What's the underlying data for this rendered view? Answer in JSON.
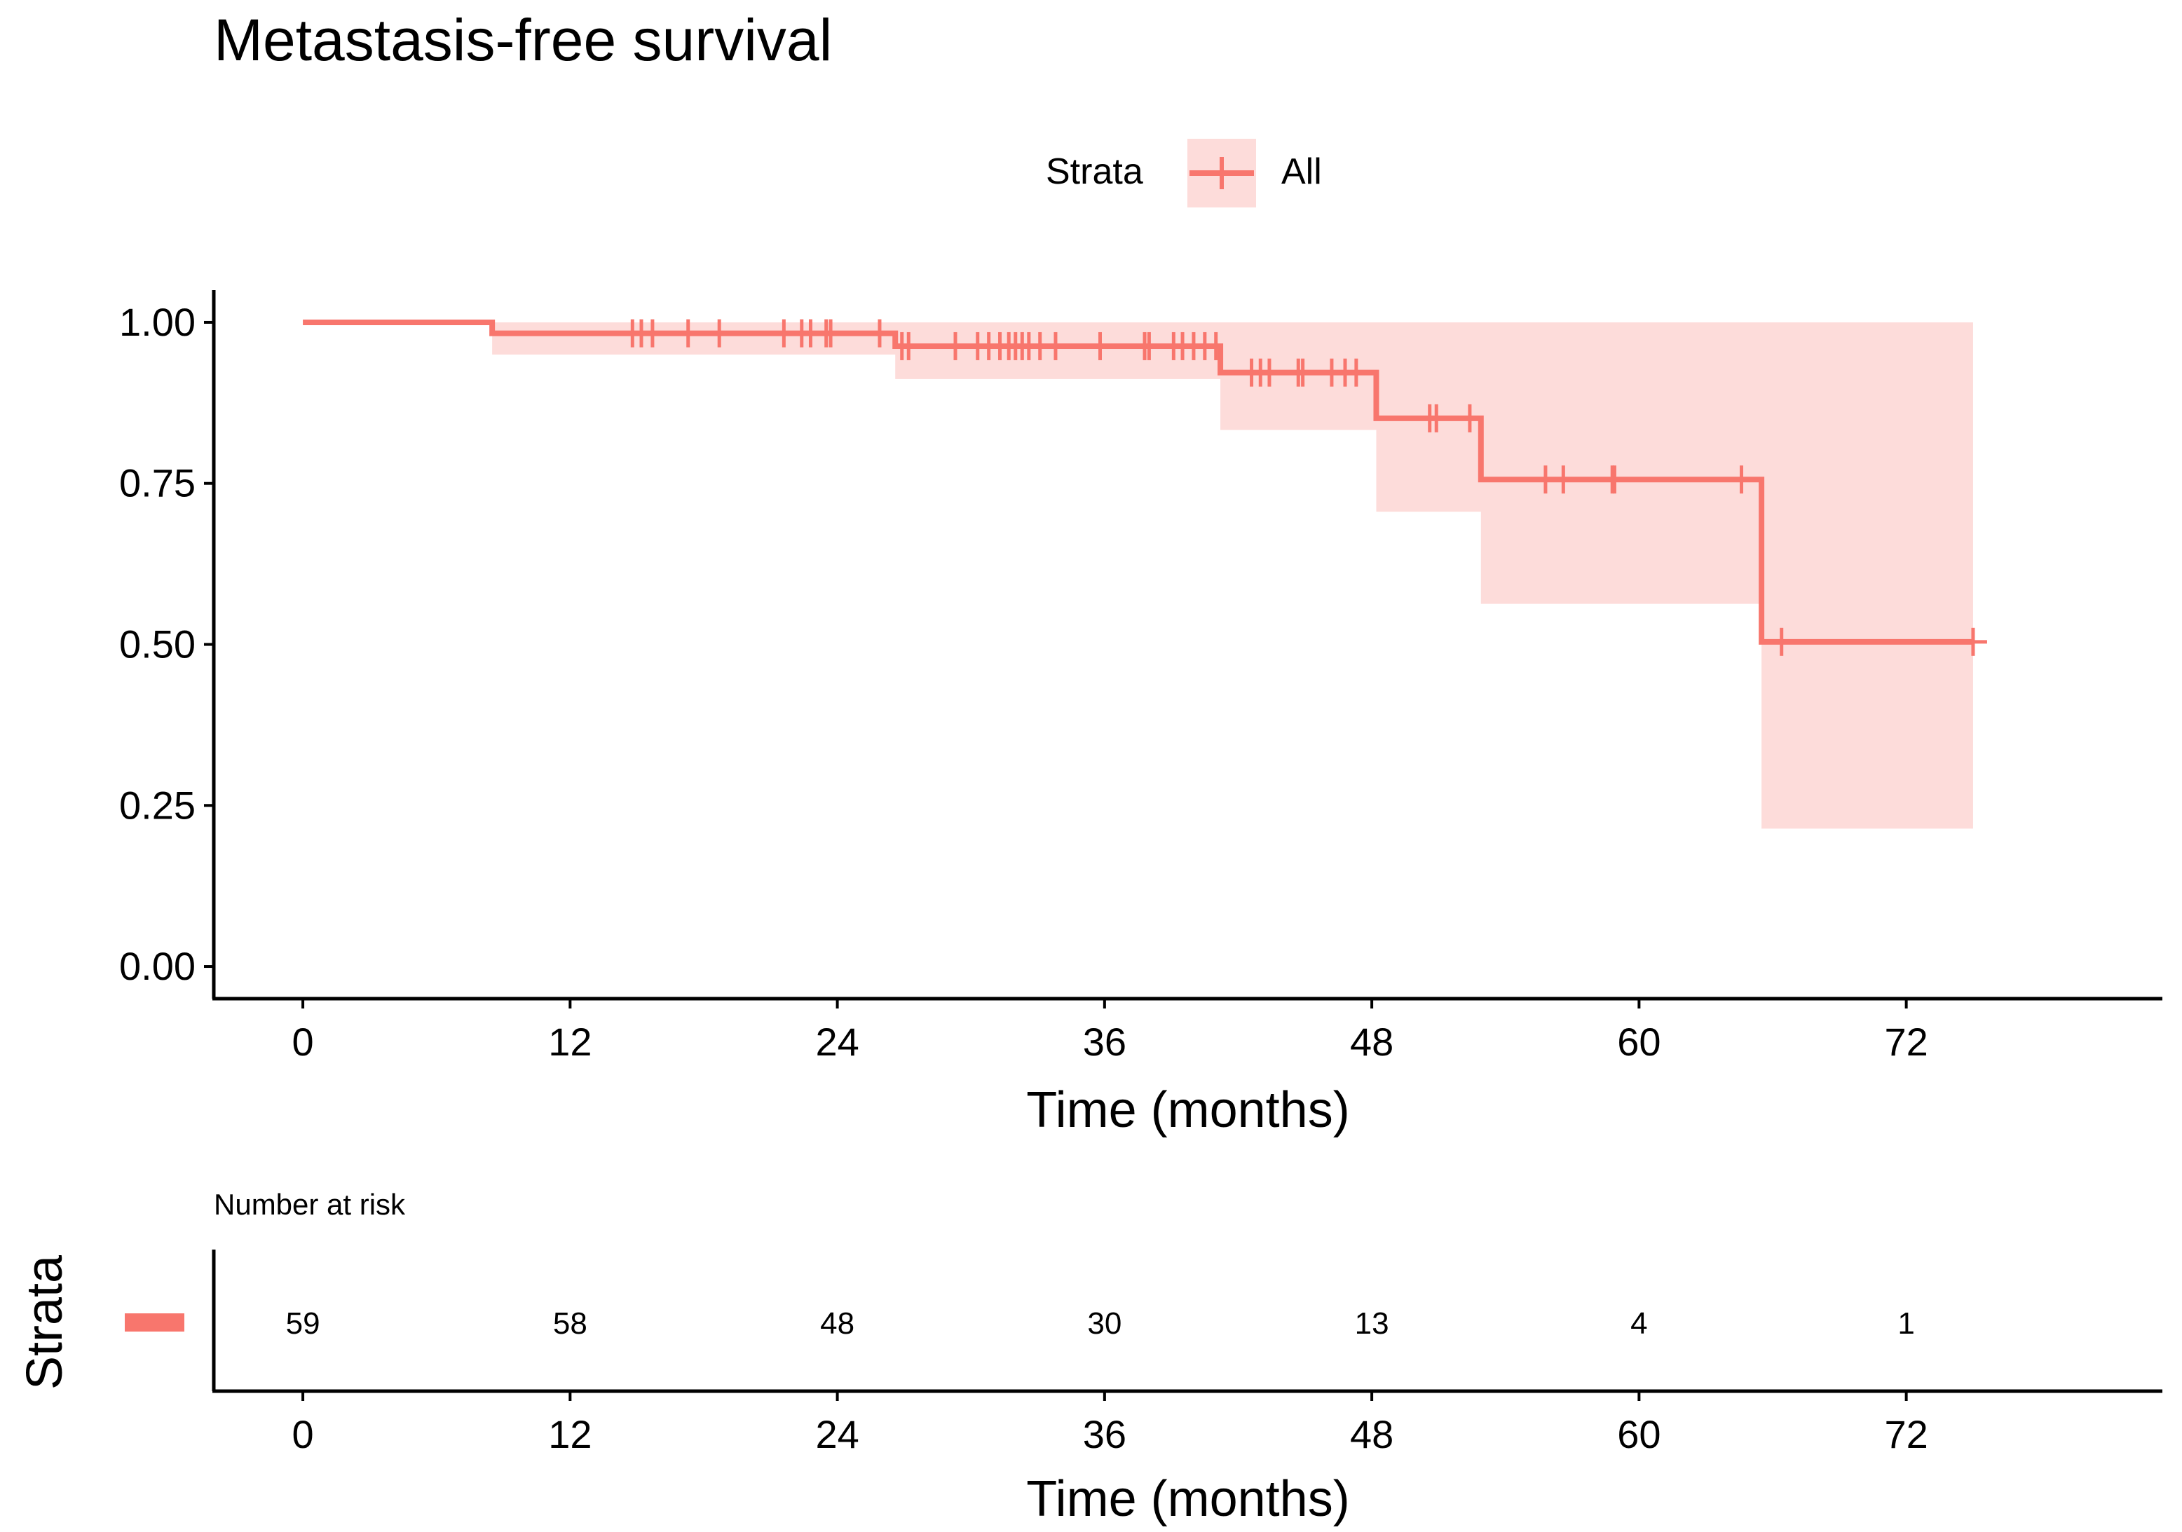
{
  "chart_data": {
    "type": "line",
    "title": "Metastasis-free survival",
    "legend": {
      "title": "Strata",
      "entries": [
        "All"
      ],
      "placement": "top"
    },
    "colors": {
      "series": "#F8766D",
      "ci_fill": "#FDDCDA",
      "axis": "#000000"
    },
    "xlabel": "Time (months)",
    "ylabel": "",
    "xlim": [
      -4,
      83.5
    ],
    "ylim": [
      -0.05,
      1.05
    ],
    "x_ticks": [
      0,
      12,
      24,
      36,
      48,
      60,
      72
    ],
    "x_tick_labels": [
      "0",
      "12",
      "24",
      "36",
      "48",
      "60",
      "72"
    ],
    "y_ticks": [
      0,
      0.25,
      0.5,
      0.75,
      1
    ],
    "y_tick_labels": [
      "0.00",
      "0.25",
      "0.50",
      "0.75",
      "1.00"
    ],
    "series": [
      {
        "name": "All",
        "step_x": [
          0,
          8.5,
          26.6,
          41.2,
          48.2,
          52.9,
          65.5,
          75
        ],
        "step_y": [
          1.0,
          0.983,
          0.963,
          0.922,
          0.851,
          0.756,
          0.504,
          0.504
        ],
        "ci_lower": [
          1.0,
          0.95,
          0.912,
          0.833,
          0.706,
          0.563,
          0.214
        ],
        "ci_upper": [
          1.0,
          1.0,
          1.0,
          1.0,
          1.0,
          1.0,
          1.0
        ],
        "censor_x": [
          14.8,
          15.2,
          15.7,
          17.3,
          18.7,
          21.6,
          22.4,
          22.8,
          23.5,
          23.7,
          25.9,
          26.9,
          27.2,
          29.3,
          30.3,
          30.8,
          31.3,
          31.7,
          32.0,
          32.3,
          32.6,
          33.1,
          33.8,
          35.8,
          37.8,
          38.0,
          39.1,
          39.5,
          40.0,
          40.5,
          41.0,
          42.6,
          43.0,
          43.4,
          44.7,
          44.9,
          46.2,
          46.8,
          47.3,
          50.6,
          50.9,
          52.4,
          55.8,
          56.6,
          58.8,
          58.9,
          64.6,
          66.4,
          75.0
        ]
      }
    ],
    "risk_table": {
      "title": "Number at risk",
      "ylabel": "Strata",
      "xlabel": "Time (months)",
      "times": [
        0,
        12,
        24,
        36,
        48,
        60,
        72
      ],
      "counts": [
        "59",
        "58",
        "48",
        "30",
        "13",
        "4",
        "1"
      ]
    }
  }
}
